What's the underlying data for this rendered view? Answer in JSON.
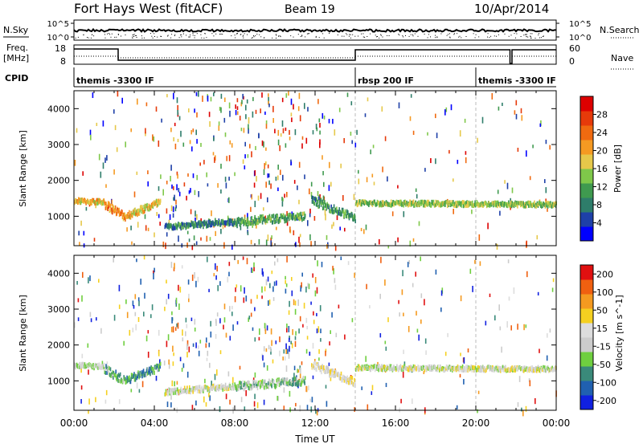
{
  "header": {
    "radar": "Fort Hays West (fitACF)",
    "beam": "Beam 19",
    "date": "10/Apr/2014"
  },
  "nsky_panel": {
    "left_label": "N.Sky",
    "right_label": "N.Search",
    "left_ticks": [
      "10^5",
      "10^0"
    ],
    "right_ticks": [
      "10^5",
      "10^0"
    ]
  },
  "freq_panel": {
    "left_label_1": "Freq.",
    "left_label_2": "[MHz]",
    "right_label": "Nave",
    "left_ticks": [
      "18",
      "8"
    ],
    "right_ticks": [
      "60",
      "0"
    ]
  },
  "cpid_panel": {
    "label": "CPID",
    "segments": [
      {
        "name": "themis -3300 IF",
        "start_hour": 0,
        "end_hour": 14
      },
      {
        "name": "rbsp 200 IF",
        "start_hour": 14,
        "end_hour": 20
      },
      {
        "name": "themis -3300 IF",
        "start_hour": 20,
        "end_hour": 24
      }
    ]
  },
  "colors": {
    "power_scale": [
      "#0000ff",
      "#1e40a8",
      "#2e7d6a",
      "#3f9a4f",
      "#7fc84a",
      "#e6c84a",
      "#f59a22",
      "#f06a10",
      "#e63a0a",
      "#dd0000"
    ],
    "velocity_scale": [
      "#1020e0",
      "#2060b0",
      "#3a8a7a",
      "#6fcf3f",
      "#cccccc",
      "#dddddd",
      "#f5d020",
      "#f59a20",
      "#f06010",
      "#e01010"
    ]
  },
  "chart_data": [
    {
      "type": "heatmap",
      "name": "power",
      "xlabel": "",
      "ylabel": "Slant Range [km]",
      "xlim": [
        0,
        24
      ],
      "ylim": [
        180,
        4500
      ],
      "yticks": [
        1000,
        2000,
        3000,
        4000
      ],
      "colorbar": {
        "label": "Power [dB]",
        "min": 0,
        "max": 32,
        "ticks": [
          4,
          8,
          12,
          16,
          20,
          24,
          28
        ]
      },
      "bands": [
        {
          "from_hour": 0.0,
          "to_hour": 1.5,
          "range_start": 1480,
          "range_end": 1450,
          "width": 120,
          "level": 0.6
        },
        {
          "from_hour": 1.5,
          "to_hour": 2.5,
          "range_start": 1400,
          "range_end": 1050,
          "width": 220,
          "level": 0.7
        },
        {
          "from_hour": 2.5,
          "to_hour": 4.3,
          "range_start": 1050,
          "range_end": 1450,
          "width": 200,
          "level": 0.6
        },
        {
          "from_hour": 4.5,
          "to_hour": 8.0,
          "range_start": 750,
          "range_end": 900,
          "width": 150,
          "level": 0.25
        },
        {
          "from_hour": 8.0,
          "to_hour": 11.5,
          "range_start": 900,
          "range_end": 1050,
          "width": 200,
          "level": 0.35
        },
        {
          "from_hour": 11.8,
          "to_hour": 14.0,
          "range_start": 1500,
          "range_end": 1000,
          "width": 200,
          "level": 0.3
        },
        {
          "from_hour": 14.0,
          "to_hour": 24.0,
          "range_start": 1420,
          "range_end": 1380,
          "width": 120,
          "level": 0.45
        }
      ]
    },
    {
      "type": "heatmap",
      "name": "velocity",
      "xlabel": "Time UT",
      "ylabel": "Slant Range [km]",
      "xlim": [
        0,
        24
      ],
      "ylim": [
        180,
        4500
      ],
      "xticks": [
        "00:00",
        "04:00",
        "08:00",
        "12:00",
        "16:00",
        "20:00",
        "00:00"
      ],
      "yticks": [
        1000,
        2000,
        3000,
        4000
      ],
      "colorbar": {
        "label": "Velocity [m s^-1]",
        "ticks": [
          200,
          100,
          50,
          15,
          -15,
          -50,
          -100,
          -200
        ]
      },
      "bands": [
        {
          "from_hour": 0.0,
          "to_hour": 1.5,
          "range_start": 1480,
          "range_end": 1450,
          "width": 120,
          "level": 0.45
        },
        {
          "from_hour": 1.5,
          "to_hour": 2.5,
          "range_start": 1400,
          "range_end": 1050,
          "width": 220,
          "level": 0.3
        },
        {
          "from_hour": 2.5,
          "to_hour": 4.3,
          "range_start": 1050,
          "range_end": 1450,
          "width": 200,
          "level": 0.25
        },
        {
          "from_hour": 4.5,
          "to_hour": 8.0,
          "range_start": 750,
          "range_end": 900,
          "width": 150,
          "level": 0.5
        },
        {
          "from_hour": 8.0,
          "to_hour": 11.5,
          "range_start": 900,
          "range_end": 1050,
          "width": 200,
          "level": 0.35
        },
        {
          "from_hour": 11.8,
          "to_hour": 14.0,
          "range_start": 1500,
          "range_end": 1000,
          "width": 200,
          "level": 0.55
        },
        {
          "from_hour": 14.0,
          "to_hour": 24.0,
          "range_start": 1420,
          "range_end": 1380,
          "width": 120,
          "level": 0.5
        }
      ]
    }
  ]
}
